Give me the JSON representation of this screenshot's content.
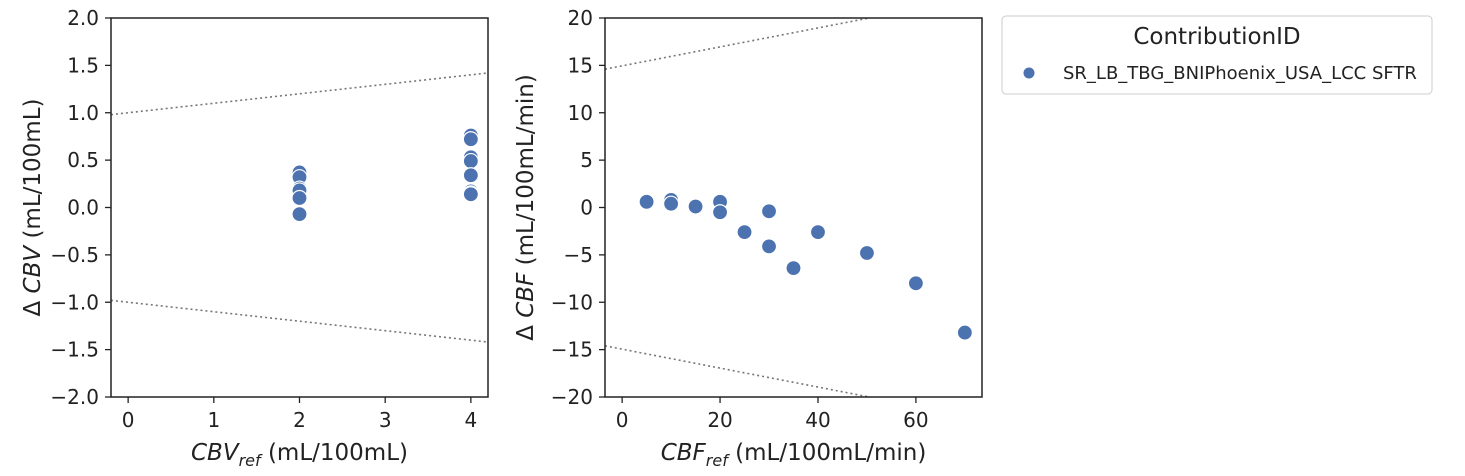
{
  "chart_data": [
    {
      "type": "scatter",
      "xlabel_main": "CBV",
      "xlabel_sub": "ref",
      "xlabel_unit": " (mL/100mL)",
      "ylabel_prefix": "Δ ",
      "ylabel_main": "CBV",
      "ylabel_unit": " (mL/100mL)",
      "xlim": [
        -0.2,
        4.2
      ],
      "ylim": [
        -2.0,
        2.0
      ],
      "xticks": [
        0,
        1,
        2,
        3,
        4
      ],
      "xtick_labels": [
        "0",
        "1",
        "2",
        "3",
        "4"
      ],
      "yticks": [
        2.0,
        1.5,
        1.0,
        0.5,
        0.0,
        -0.5,
        -1.0,
        -1.5,
        -2.0
      ],
      "ytick_labels": [
        "2.0",
        "1.5",
        "1.0",
        "0.5",
        "0.0",
        "−0.5",
        "−1.0",
        "−1.5",
        "−2.0"
      ],
      "limit_lines": [
        {
          "x": [
            -0.2,
            4.2
          ],
          "y": [
            0.98,
            1.42
          ]
        },
        {
          "x": [
            -0.2,
            4.2
          ],
          "y": [
            -0.98,
            -1.42
          ]
        }
      ],
      "series": [
        {
          "name": "SR_LB_TBG_BNIPhoenix_USA_LCC SFTR",
          "x": [
            2,
            2,
            2,
            2,
            2,
            2,
            4,
            4,
            4,
            4,
            4,
            4,
            4,
            4
          ],
          "y": [
            0.37,
            0.32,
            0.2,
            0.18,
            0.1,
            -0.07,
            0.76,
            0.72,
            0.53,
            0.49,
            0.34,
            0.17,
            0.15,
            0.14
          ]
        }
      ]
    },
    {
      "type": "scatter",
      "xlabel_main": "CBF",
      "xlabel_sub": "ref",
      "xlabel_unit": " (mL/100mL/min)",
      "ylabel_prefix": "Δ ",
      "ylabel_main": "CBF",
      "ylabel_unit": " (mL/100mL/min)",
      "xlim": [
        -3.5,
        73.5
      ],
      "ylim": [
        -20,
        20
      ],
      "xticks": [
        0,
        20,
        40,
        60
      ],
      "xtick_labels": [
        "0",
        "20",
        "40",
        "60"
      ],
      "yticks": [
        20,
        15,
        10,
        5,
        0,
        -5,
        -10,
        -15,
        -20
      ],
      "ytick_labels": [
        "20",
        "15",
        "10",
        "5",
        "0",
        "−5",
        "−10",
        "−15",
        "−20"
      ],
      "limit_lines": [
        {
          "x": [
            -3.5,
            73.5
          ],
          "y": [
            14.6,
            22.3
          ]
        },
        {
          "x": [
            -3.5,
            73.5
          ],
          "y": [
            -14.6,
            -22.3
          ]
        }
      ],
      "series": [
        {
          "name": "SR_LB_TBG_BNIPhoenix_USA_LCC SFTR",
          "x": [
            5,
            10,
            10,
            15,
            20,
            20,
            25,
            30,
            30,
            35,
            40,
            50,
            60,
            70
          ],
          "y": [
            0.6,
            0.8,
            0.4,
            0.1,
            0.6,
            -0.5,
            -2.6,
            -0.4,
            -4.1,
            -6.4,
            -2.6,
            -4.8,
            -8.0,
            -13.2
          ]
        }
      ]
    }
  ],
  "legend": {
    "title": "ContributionID",
    "entries": [
      "SR_LB_TBG_BNIPhoenix_USA_LCC SFTR"
    ],
    "placement": "outside-right"
  },
  "colors": {
    "marker": "#4c72b0",
    "limit_line": "#777777",
    "axis": "#222222"
  }
}
